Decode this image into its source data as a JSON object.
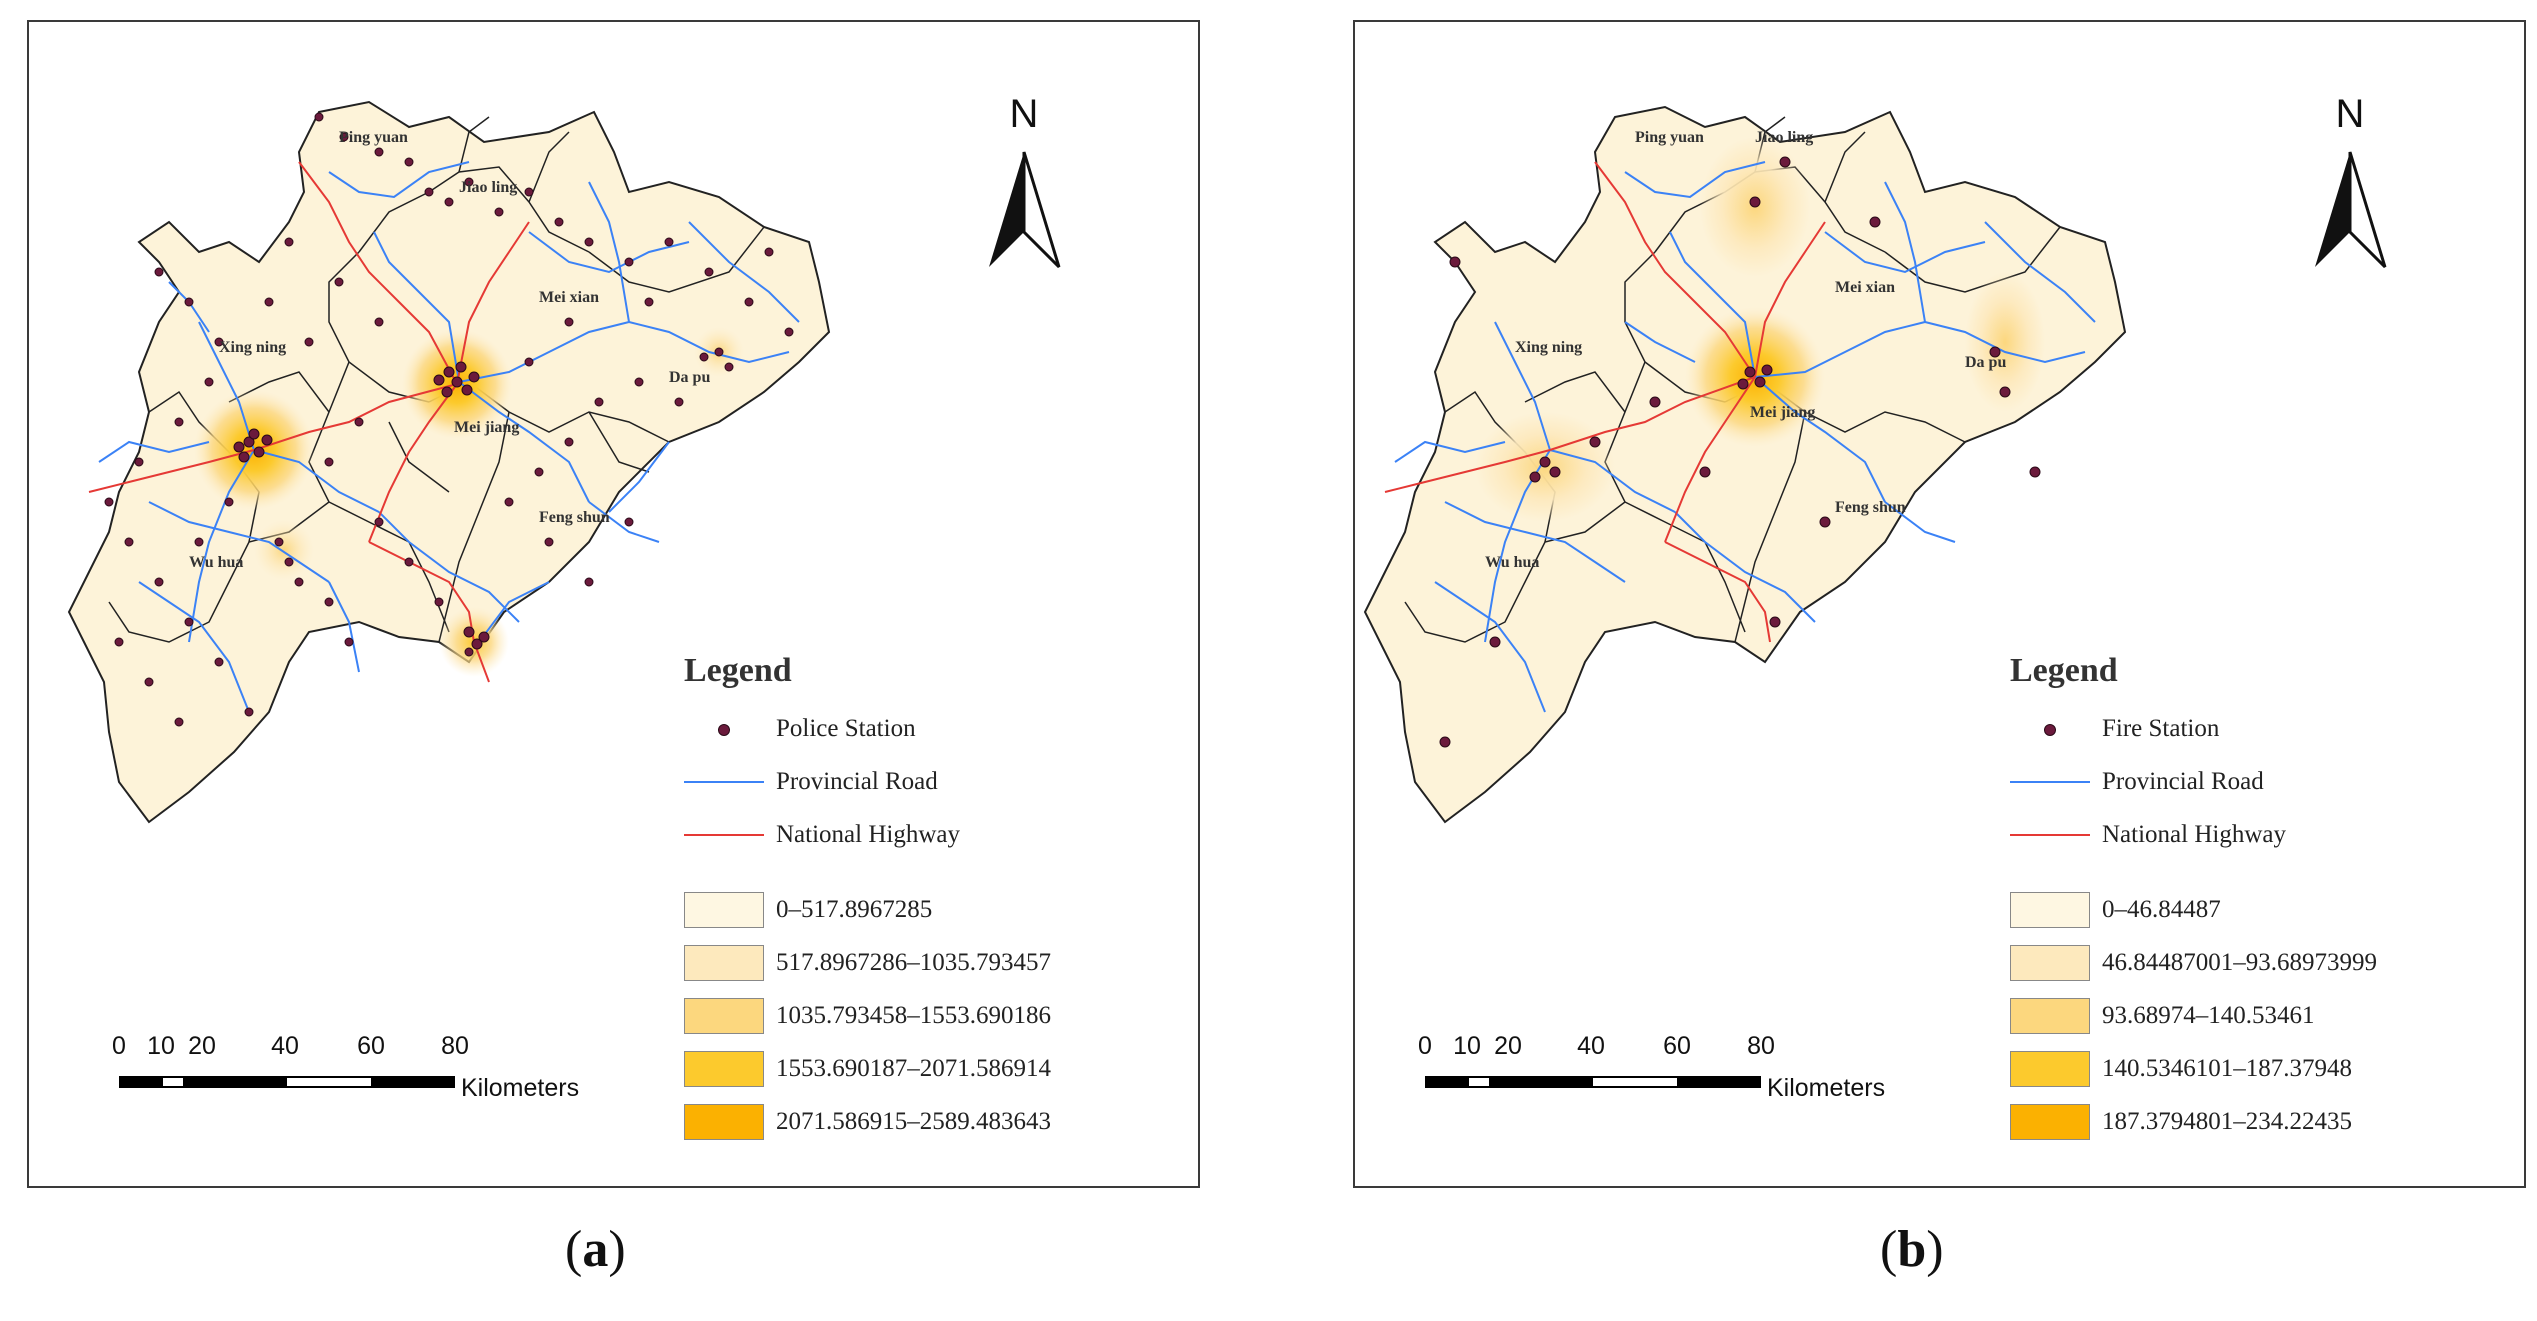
{
  "colors": {
    "map_fill": "#fdf3d9",
    "provincial_road": "#3b82f6",
    "national_highway": "#e53935",
    "station": "#6b1a3c",
    "boundary": "#222222"
  },
  "panels": [
    {
      "caption_letter": "a",
      "north_label": "N",
      "place_names": [
        "Ping yuan",
        "Jiao ling",
        "Mei xian",
        "Xing ning",
        "Da pu",
        "Mei jiang",
        "Feng shun",
        "Wu hua"
      ],
      "legend": {
        "title": "Legend",
        "station_label": "Police Station",
        "provincial_road_label": "Provincial Road",
        "national_highway_label": "National Highway",
        "classes": [
          {
            "label": "0–517.8967285",
            "color": "#fef7e2"
          },
          {
            "label": "517.8967286–1035.793457",
            "color": "#fde9bd"
          },
          {
            "label": "1035.793458–1553.690186",
            "color": "#fcd77e"
          },
          {
            "label": "1553.690187–2071.586914",
            "color": "#fcca2d"
          },
          {
            "label": "2071.586915–2589.483643",
            "color": "#fbb101"
          }
        ]
      },
      "scale": {
        "ticks": [
          "0",
          "10",
          "20",
          "40",
          "60",
          "80"
        ],
        "unit": "Kilometers"
      }
    },
    {
      "caption_letter": "b",
      "north_label": "N",
      "place_names": [
        "Ping yuan",
        "Jiao ling",
        "Mei xian",
        "Xing ning",
        "Da pu",
        "Mei jiang",
        "Feng shun",
        "Wu hua"
      ],
      "legend": {
        "title": "Legend",
        "station_label": "Fire Station",
        "provincial_road_label": "Provincial Road",
        "national_highway_label": "National Highway",
        "classes": [
          {
            "label": "0–46.84487",
            "color": "#fef7e2"
          },
          {
            "label": "46.84487001–93.68973999",
            "color": "#fde9bd"
          },
          {
            "label": "93.68974–140.53461",
            "color": "#fcd77e"
          },
          {
            "label": "140.5346101–187.37948",
            "color": "#fcca2d"
          },
          {
            "label": "187.3794801–234.22435",
            "color": "#fbb101"
          }
        ]
      },
      "scale": {
        "ticks": [
          "0",
          "10",
          "20",
          "40",
          "60",
          "80"
        ],
        "unit": "Kilometers"
      }
    }
  ]
}
